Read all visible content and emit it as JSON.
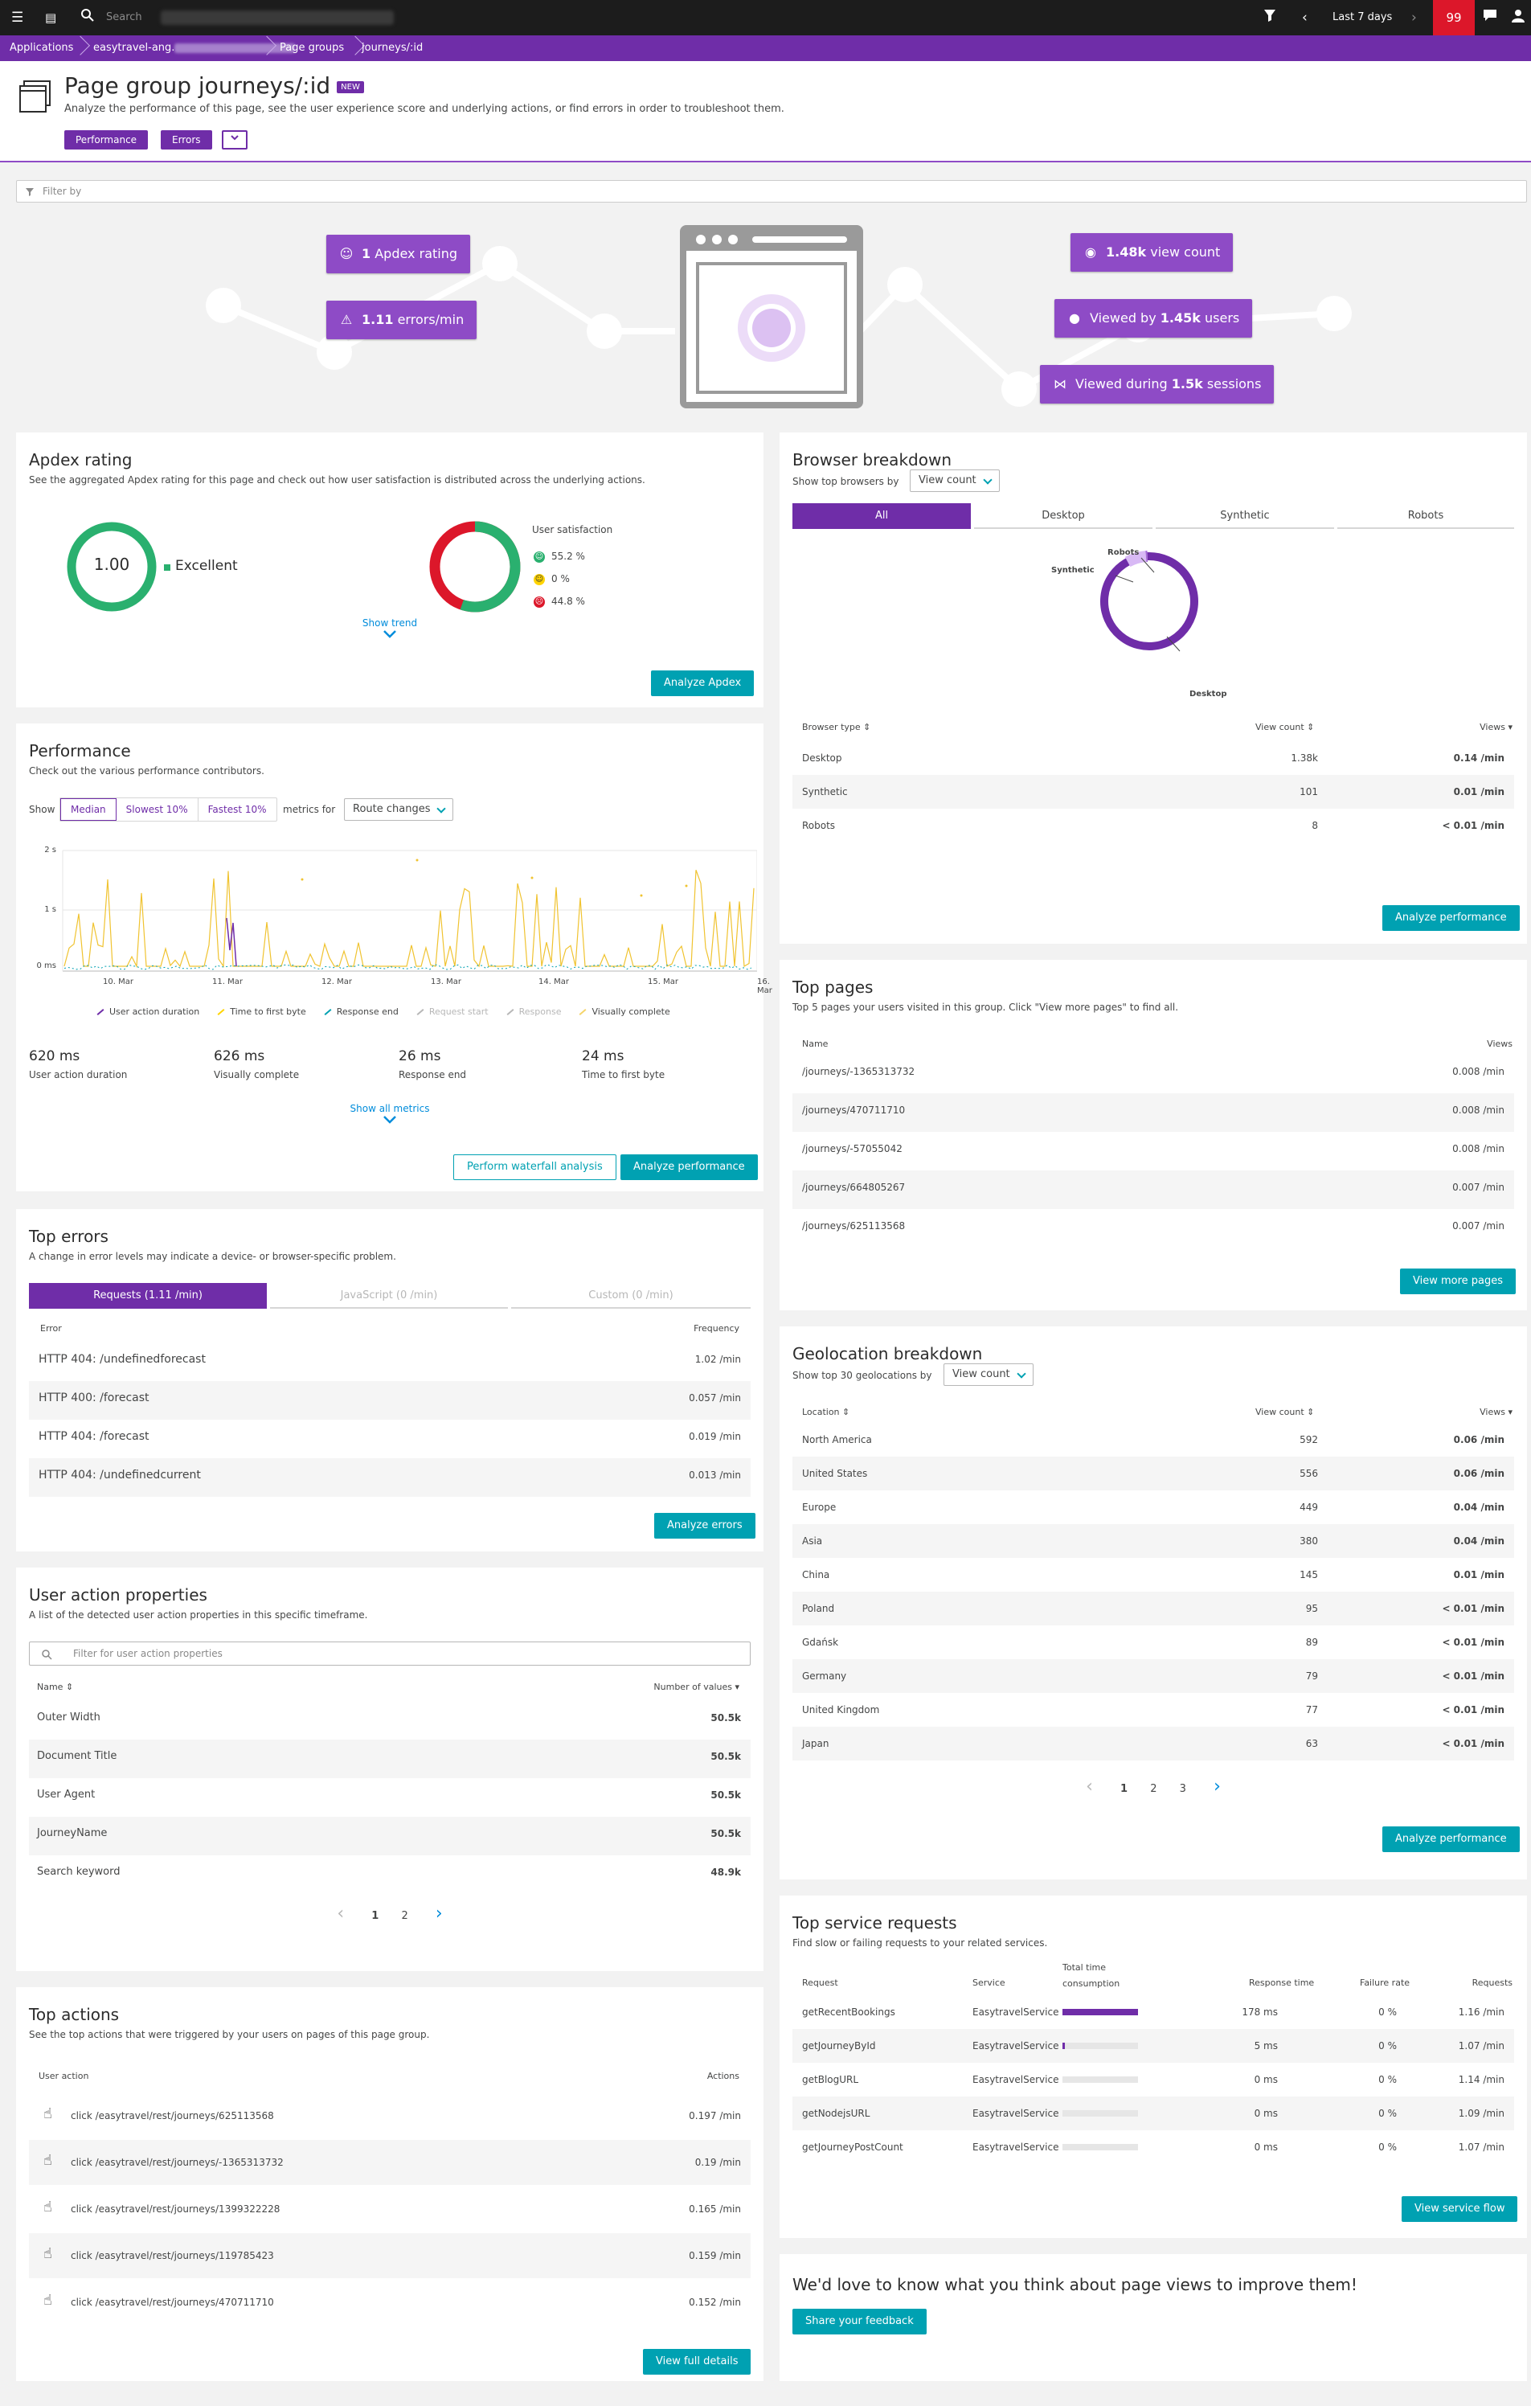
{
  "topbar": {
    "search_placeholder": "Search",
    "timeframe": "Last 7 days",
    "problems_count": "99"
  },
  "breadcrumb": {
    "items": [
      "Applications",
      "easytravel-ang.",
      "Page groups",
      "journeys/:id"
    ]
  },
  "header": {
    "title": "Page group journeys/:id",
    "badge": "NEW",
    "subtitle": "Analyze the performance of this page, see the user experience score and underlying actions, or find errors in order to troubleshoot them.",
    "tags": [
      "Performance",
      "Errors"
    ]
  },
  "filter": {
    "placeholder": "Filter by"
  },
  "hero": {
    "apdex": {
      "value": "1",
      "label": "Apdex rating"
    },
    "errors": {
      "value": "1.11",
      "label": "errors/min"
    },
    "views": {
      "value": "1.48k",
      "label": "view count"
    },
    "users": {
      "prefix": "Viewed by",
      "value": "1.45k",
      "label": "users"
    },
    "sessions": {
      "prefix": "Viewed during",
      "value": "1.5k",
      "label": "sessions"
    }
  },
  "apdex_card": {
    "title": "Apdex rating",
    "desc": "See the aggregated Apdex rating for this page and check out how user satisfaction is distributed across the underlying actions.",
    "score": "1.00",
    "rating": "Excellent",
    "satisfaction_title": "User satisfaction",
    "satisfaction": [
      {
        "label": "55.2 %",
        "color": "#2ab06f",
        "value": 55.2
      },
      {
        "label": "0 %",
        "color": "#ffd400",
        "value": 0
      },
      {
        "label": "44.8 %",
        "color": "#dc172a",
        "value": 44.8
      }
    ],
    "show_trend": "Show trend",
    "button": "Analyze Apdex"
  },
  "performance_card": {
    "title": "Performance",
    "desc": "Check out the various performance contributors.",
    "show_label": "Show",
    "segments": [
      "Median",
      "Slowest 10%",
      "Fastest 10%"
    ],
    "metrics_for": "metrics for",
    "dropdown": "Route changes",
    "y_ticks": [
      "2 s",
      "1 s",
      "0 ms"
    ],
    "x_ticks": [
      "10. Mar",
      "11. Mar",
      "12. Mar",
      "13. Mar",
      "14. Mar",
      "15. Mar",
      "16. Mar"
    ],
    "legend": [
      "User action duration",
      "Time to first byte",
      "Response end",
      "Request start",
      "Response",
      "Visually complete"
    ],
    "legend_colors": [
      "#6f2da8",
      "#ffd400",
      "#00a1b2",
      "#b7b7b7",
      "#b7b7b7",
      "#f5d46a"
    ],
    "metrics": [
      {
        "value": "620 ms",
        "label": "User action duration"
      },
      {
        "value": "626 ms",
        "label": "Visually complete"
      },
      {
        "value": "26 ms",
        "label": "Response end"
      },
      {
        "value": "24 ms",
        "label": "Time to first byte"
      }
    ],
    "show_all": "Show all metrics",
    "btn_waterfall": "Perform waterfall analysis",
    "btn_analyze": "Analyze performance"
  },
  "errors_card": {
    "title": "Top errors",
    "desc": "A change in error levels may indicate a device- or browser-specific problem.",
    "tabs": [
      "Requests (1.11 /min)",
      "JavaScript (0 /min)",
      "Custom (0 /min)"
    ],
    "col_error": "Error",
    "col_freq": "Frequency",
    "rows": [
      {
        "name": "HTTP 404: /undefinedforecast",
        "freq": "1.02 /min"
      },
      {
        "name": "HTTP 400: /forecast",
        "freq": "0.057 /min"
      },
      {
        "name": "HTTP 404: /forecast",
        "freq": "0.019 /min"
      },
      {
        "name": "HTTP 404: /undefinedcurrent",
        "freq": "0.013 /min"
      }
    ],
    "button": "Analyze errors"
  },
  "uap_card": {
    "title": "User action properties",
    "desc": "A list of the detected user action properties in this specific timeframe.",
    "filter_placeholder": "Filter for user action properties",
    "col_name": "Name",
    "col_values": "Number of values",
    "rows": [
      {
        "name": "Outer Width",
        "value": "50.5k"
      },
      {
        "name": "Document Title",
        "value": "50.5k"
      },
      {
        "name": "User Agent",
        "value": "50.5k"
      },
      {
        "name": "JourneyName",
        "value": "50.5k"
      },
      {
        "name": "Search keyword",
        "value": "48.9k"
      }
    ],
    "pages": [
      "1",
      "2"
    ]
  },
  "actions_card": {
    "title": "Top actions",
    "desc": "See the top actions that were triggered by your users on pages of this page group.",
    "col_action": "User action",
    "col_actions": "Actions",
    "rows": [
      {
        "name": "click /easytravel/rest/journeys/625113568",
        "value": "0.197 /min"
      },
      {
        "name": "click /easytravel/rest/journeys/-1365313732",
        "value": "0.19 /min"
      },
      {
        "name": "click /easytravel/rest/journeys/1399322228",
        "value": "0.165 /min"
      },
      {
        "name": "click /easytravel/rest/journeys/119785423",
        "value": "0.159 /min"
      },
      {
        "name": "click /easytravel/rest/journeys/470711710",
        "value": "0.152 /min"
      }
    ],
    "button": "View full details"
  },
  "browser_card": {
    "title": "Browser breakdown",
    "show_top": "Show top browsers by",
    "dropdown": "View count",
    "tabs": [
      "All",
      "Desktop",
      "Synthetic",
      "Robots"
    ],
    "donut_labels": [
      "Robots",
      "Synthetic",
      "Desktop"
    ],
    "col_type": "Browser type",
    "col_count": "View count",
    "col_views": "Views",
    "rows": [
      {
        "name": "Desktop",
        "count": "1.38k",
        "views": "0.14 /min",
        "value": 1380,
        "color": "#6f2da8"
      },
      {
        "name": "Synthetic",
        "count": "101",
        "views": "0.01 /min",
        "value": 101,
        "color": "#d8b9f5"
      },
      {
        "name": "Robots",
        "count": "8",
        "views": "< 0.01 /min",
        "value": 8,
        "color": "#a46ad6"
      }
    ],
    "button": "Analyze performance"
  },
  "pages_card": {
    "title": "Top pages",
    "desc": "Top 5 pages your users visited in this group. Click \"View more pages\" to find all.",
    "col_name": "Name",
    "col_views": "Views",
    "rows": [
      {
        "name": "/journeys/-1365313732",
        "views": "0.008 /min"
      },
      {
        "name": "/journeys/470711710",
        "views": "0.008 /min"
      },
      {
        "name": "/journeys/-57055042",
        "views": "0.008 /min"
      },
      {
        "name": "/journeys/664805267",
        "views": "0.007 /min"
      },
      {
        "name": "/journeys/625113568",
        "views": "0.007 /min"
      }
    ],
    "button": "View more pages"
  },
  "geo_card": {
    "title": "Geolocation breakdown",
    "show_top": "Show top 30 geolocations by",
    "dropdown": "View count",
    "col_loc": "Location",
    "col_count": "View count",
    "col_views": "Views",
    "rows": [
      {
        "name": "North America",
        "count": "592",
        "views": "0.06 /min"
      },
      {
        "name": "United States",
        "count": "556",
        "views": "0.06 /min"
      },
      {
        "name": "Europe",
        "count": "449",
        "views": "0.04 /min"
      },
      {
        "name": "Asia",
        "count": "380",
        "views": "0.04 /min"
      },
      {
        "name": "China",
        "count": "145",
        "views": "0.01 /min"
      },
      {
        "name": "Poland",
        "count": "95",
        "views": "< 0.01 /min"
      },
      {
        "name": "Gdańsk",
        "count": "89",
        "views": "< 0.01 /min"
      },
      {
        "name": "Germany",
        "count": "79",
        "views": "< 0.01 /min"
      },
      {
        "name": "United Kingdom",
        "count": "77",
        "views": "< 0.01 /min"
      },
      {
        "name": "Japan",
        "count": "63",
        "views": "< 0.01 /min"
      }
    ],
    "pages": [
      "1",
      "2",
      "3"
    ],
    "button": "Analyze performance"
  },
  "service_card": {
    "title": "Top service requests",
    "desc": "Find slow or failing requests to your related services.",
    "col_request": "Request",
    "col_service": "Service",
    "col_total": [
      "Total time",
      "consumption"
    ],
    "col_resp": "Response time",
    "col_fail": "Failure rate",
    "col_reqs": "Requests",
    "rows": [
      {
        "name": "getRecentBookings",
        "service": "EasytravelService",
        "share": 1.0,
        "resp": "178 ms",
        "fail": "0 %",
        "reqs": "1.16 /min"
      },
      {
        "name": "getJourneyById",
        "service": "EasytravelService",
        "share": 0.03,
        "resp": "5 ms",
        "fail": "0 %",
        "reqs": "1.07 /min"
      },
      {
        "name": "getBlogURL",
        "service": "EasytravelService",
        "share": 0.0,
        "resp": "0 ms",
        "fail": "0 %",
        "reqs": "1.14 /min"
      },
      {
        "name": "getNodejsURL",
        "service": "EasytravelService",
        "share": 0.0,
        "resp": "0 ms",
        "fail": "0 %",
        "reqs": "1.09 /min"
      },
      {
        "name": "getJourneyPostCount",
        "service": "EasytravelService",
        "share": 0.0,
        "resp": "0 ms",
        "fail": "0 %",
        "reqs": "1.07 /min"
      }
    ],
    "button": "View service flow"
  },
  "feedback_card": {
    "title": "We'd love to know what you think about page views to improve them!",
    "button": "Share your feedback"
  },
  "colors": {
    "purple": "#6f2da8",
    "purple_light": "#8e4bc6",
    "teal": "#00a1b2",
    "link": "#008cdb",
    "green": "#2ab06f",
    "red": "#dc172a"
  }
}
